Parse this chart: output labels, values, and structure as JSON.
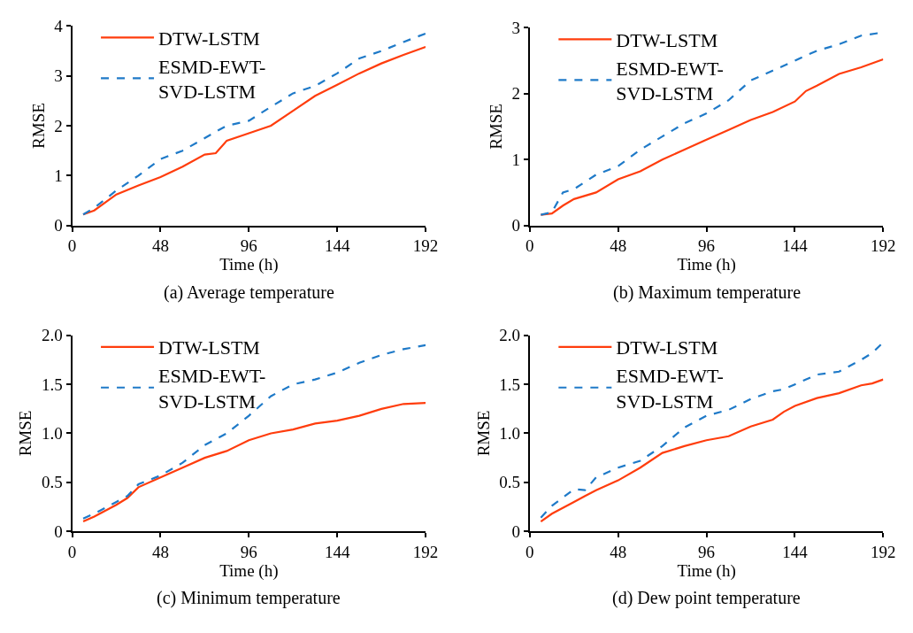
{
  "chart_data": [
    {
      "type": "line",
      "title": "(a) Average temperature",
      "xlabel": "Time (h)",
      "ylabel": "RMSE",
      "x": [
        6,
        12,
        24,
        36,
        48,
        60,
        72,
        78,
        84,
        96,
        108,
        120,
        132,
        144,
        156,
        168,
        180,
        192
      ],
      "xlim": [
        0,
        192
      ],
      "xticks": [
        0,
        48,
        96,
        144,
        192
      ],
      "ylim": [
        0,
        4
      ],
      "yticks": [
        0,
        1,
        2,
        3,
        4
      ],
      "legend": "top left",
      "series": [
        {
          "name": "DTW-LSTM",
          "color": "#ff3d0d",
          "line_style": "solid",
          "values": [
            0.22,
            0.3,
            0.62,
            0.8,
            0.97,
            1.18,
            1.42,
            1.45,
            1.7,
            1.85,
            2.0,
            2.3,
            2.6,
            2.82,
            3.05,
            3.25,
            3.42,
            3.58
          ]
        },
        {
          "name": "ESMD-EWT-SVD-LSTM",
          "color": "#1f7ac8",
          "line_style": "dashed",
          "values": [
            0.22,
            0.35,
            0.7,
            1.0,
            1.33,
            1.5,
            1.75,
            1.88,
            2.0,
            2.1,
            2.38,
            2.65,
            2.8,
            3.05,
            3.35,
            3.5,
            3.68,
            3.85
          ]
        }
      ]
    },
    {
      "type": "line",
      "title": "(b) Maximum temperature",
      "xlabel": "Time (h)",
      "ylabel": "RMSE",
      "x": [
        6,
        12,
        18,
        24,
        36,
        48,
        60,
        72,
        84,
        96,
        108,
        120,
        132,
        144,
        150,
        156,
        168,
        180,
        192
      ],
      "xlim": [
        0,
        192
      ],
      "xticks": [
        0,
        48,
        96,
        144,
        192
      ],
      "ylim": [
        0,
        3
      ],
      "yticks": [
        0,
        1,
        2,
        3
      ],
      "legend": "top left",
      "series": [
        {
          "name": "DTW-LSTM",
          "color": "#ff3d0d",
          "line_style": "solid",
          "values": [
            0.16,
            0.18,
            0.3,
            0.4,
            0.5,
            0.7,
            0.82,
            1.0,
            1.15,
            1.3,
            1.45,
            1.6,
            1.72,
            1.88,
            2.04,
            2.12,
            2.3,
            2.4,
            2.52
          ]
        },
        {
          "name": "ESMD-EWT-SVD-LSTM",
          "color": "#1f7ac8",
          "line_style": "dashed",
          "values": [
            0.16,
            0.2,
            0.5,
            0.55,
            0.77,
            0.9,
            1.15,
            1.35,
            1.55,
            1.7,
            1.9,
            2.2,
            2.35,
            2.5,
            2.58,
            2.65,
            2.75,
            2.88,
            2.93
          ]
        }
      ]
    },
    {
      "type": "line",
      "title": "(c) Minimum temperature",
      "xlabel": "Time (h)",
      "ylabel": "RMSE",
      "x": [
        6,
        12,
        24,
        30,
        36,
        48,
        60,
        72,
        84,
        96,
        108,
        120,
        132,
        144,
        156,
        168,
        180,
        192
      ],
      "xlim": [
        0,
        192
      ],
      "xticks": [
        0,
        48,
        96,
        144,
        192
      ],
      "ylim": [
        0,
        2
      ],
      "yticks": [
        0,
        {
          "value": 0.5,
          "label": "0.5"
        },
        {
          "value": 1,
          "label": "1.0"
        },
        {
          "value": 1.5,
          "label": "1.5"
        },
        {
          "value": 2,
          "label": "2.0"
        }
      ],
      "legend": "top left",
      "series": [
        {
          "name": "DTW-LSTM",
          "color": "#ff3d0d",
          "line_style": "solid",
          "values": [
            0.1,
            0.15,
            0.27,
            0.34,
            0.45,
            0.55,
            0.65,
            0.75,
            0.82,
            0.93,
            1.0,
            1.04,
            1.1,
            1.13,
            1.18,
            1.25,
            1.3,
            1.31
          ]
        },
        {
          "name": "ESMD-EWT-SVD-LSTM",
          "color": "#1f7ac8",
          "line_style": "dashed",
          "values": [
            0.13,
            0.18,
            0.3,
            0.36,
            0.48,
            0.57,
            0.7,
            0.88,
            1.0,
            1.18,
            1.38,
            1.5,
            1.55,
            1.62,
            1.72,
            1.8,
            1.86,
            1.9
          ]
        }
      ]
    },
    {
      "type": "line",
      "title": "(d) Dew point temperature",
      "xlabel": "Time (h)",
      "ylabel": "RMSE",
      "x": [
        6,
        12,
        24,
        30,
        36,
        48,
        60,
        72,
        84,
        96,
        108,
        120,
        132,
        138,
        144,
        156,
        168,
        180,
        186,
        192
      ],
      "xlim": [
        0,
        192
      ],
      "xticks": [
        0,
        48,
        96,
        144,
        192
      ],
      "ylim": [
        0,
        2
      ],
      "yticks": [
        0,
        {
          "value": 0.5,
          "label": "0.5"
        },
        {
          "value": 1,
          "label": "1.0"
        },
        {
          "value": 1.5,
          "label": "1.5"
        },
        {
          "value": 2,
          "label": "2.0"
        }
      ],
      "legend": "top left",
      "series": [
        {
          "name": "DTW-LSTM",
          "color": "#ff3d0d",
          "line_style": "solid",
          "values": [
            0.1,
            0.18,
            0.3,
            0.36,
            0.42,
            0.52,
            0.65,
            0.8,
            0.87,
            0.93,
            0.97,
            1.07,
            1.14,
            1.22,
            1.28,
            1.36,
            1.41,
            1.49,
            1.51,
            1.55
          ]
        },
        {
          "name": "ESMD-EWT-SVD-LSTM",
          "color": "#1f7ac8",
          "line_style": "dashed",
          "values": [
            0.14,
            0.26,
            0.43,
            0.42,
            0.55,
            0.65,
            0.72,
            0.87,
            1.06,
            1.18,
            1.24,
            1.35,
            1.43,
            1.45,
            1.5,
            1.6,
            1.63,
            1.75,
            1.82,
            1.93
          ]
        }
      ]
    }
  ]
}
